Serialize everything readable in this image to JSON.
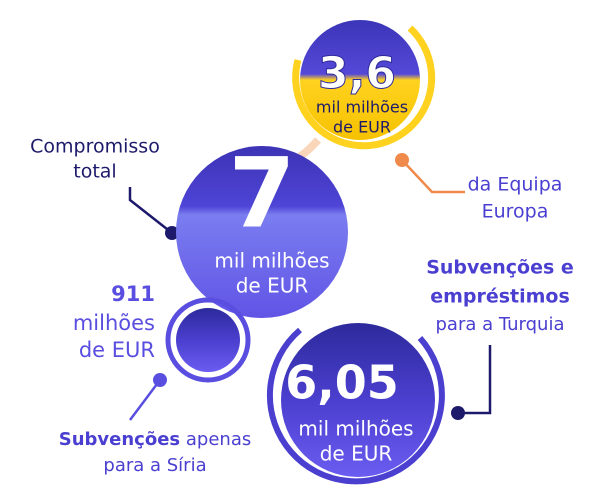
{
  "nodes": [
    {
      "amount": "3,6",
      "unit": [
        "mil milhões",
        "de EUR"
      ],
      "label": [
        "da Equipa",
        "Europa"
      ]
    },
    {
      "amount": "7",
      "unit": [
        "mil milhões",
        "de EUR"
      ],
      "label": [
        "Compromisso",
        "total"
      ]
    },
    {
      "amount": "911",
      "unit": [
        "milhões",
        "de EUR"
      ],
      "label_bold": "Subvenções",
      "label": [
        " apenas",
        "para a Síria"
      ]
    },
    {
      "amount": "6,05",
      "unit": [
        "mil milhões",
        "de EUR"
      ],
      "label_bold": [
        "Subvenções e",
        "empréstimos"
      ],
      "label": [
        "para a Turquia"
      ]
    }
  ]
}
